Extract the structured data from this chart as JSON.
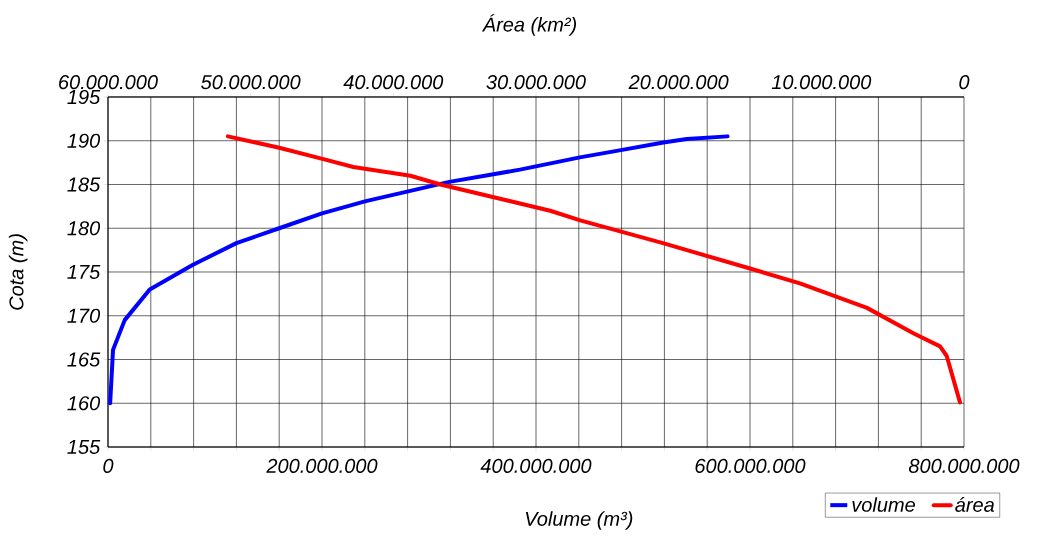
{
  "chart_data": {
    "type": "line",
    "xlabel": "Volume (m³)",
    "ylabel": "Cota (m)",
    "x2label": "Área (km²)",
    "xlim": [
      0,
      800000000
    ],
    "xticks": [
      0,
      {
        "value": 40000000,
        "label": null
      },
      {
        "value": 80000000,
        "label": null
      },
      {
        "value": 120000000,
        "label": null
      },
      {
        "value": 160000000,
        "label": null
      },
      {
        "value": 200000000,
        "label": "200.000.000"
      },
      {
        "value": 240000000,
        "label": null
      },
      {
        "value": 280000000,
        "label": null
      },
      {
        "value": 320000000,
        "label": null
      },
      {
        "value": 360000000,
        "label": null
      },
      {
        "value": 400000000,
        "label": "400.000.000"
      },
      {
        "value": 440000000,
        "label": null
      },
      {
        "value": 480000000,
        "label": null
      },
      {
        "value": 520000000,
        "label": null
      },
      {
        "value": 560000000,
        "label": null
      },
      {
        "value": 600000000,
        "label": "600.000.000"
      },
      {
        "value": 640000000,
        "label": null
      },
      {
        "value": 680000000,
        "label": null
      },
      {
        "value": 720000000,
        "label": null
      },
      {
        "value": 760000000,
        "label": null
      },
      {
        "value": 800000000,
        "label": "800.000.000"
      }
    ],
    "x2lim": [
      60000000,
      0
    ],
    "x2ticks": [
      {
        "value": 60000000,
        "label": "60.000.000"
      },
      {
        "value": 50000000,
        "label": "50.000.000"
      },
      {
        "value": 40000000,
        "label": "40.000.000"
      },
      {
        "value": 30000000,
        "label": "30.000.000"
      },
      {
        "value": 20000000,
        "label": "20.000.000"
      },
      {
        "value": 10000000,
        "label": "10.000.000"
      },
      0
    ],
    "ylim": [
      155,
      195
    ],
    "yticks": [
      155,
      160,
      165,
      170,
      175,
      180,
      185,
      190,
      195
    ],
    "grid": true,
    "legend": "bottom right",
    "line_style": "solid",
    "marker": "none",
    "series": [
      {
        "name": "volume",
        "color": "#0000ff",
        "x": [
          2000000,
          4700000,
          15600000,
          39000000,
          79000000,
          120000000,
          160000000,
          200000000,
          241000000,
          319000000,
          385000000,
          441000000,
          478000000,
          519000000,
          541000000,
          579000000
        ],
        "values": [
          160,
          166.1,
          169.5,
          173.0,
          175.8,
          178.3,
          180.0,
          181.7,
          183.1,
          185.3,
          186.7,
          188.1,
          188.9,
          189.8,
          190.2,
          190.5
        ]
      },
      {
        "name": "área",
        "color": "#ff0000",
        "axis": "x2",
        "x": [
          51600000,
          48000000,
          44900000,
          42800000,
          38800000,
          36700000,
          29000000,
          26900000,
          21100000,
          15000000,
          11500000,
          6800000,
          3550000,
          1680000,
          1210000,
          280000
        ],
        "values": [
          190.5,
          189.2,
          187.9,
          187.0,
          186.0,
          185.0,
          182.0,
          180.9,
          178.3,
          175.4,
          173.7,
          170.9,
          168.0,
          166.5,
          165.4,
          160.1
        ]
      }
    ]
  }
}
